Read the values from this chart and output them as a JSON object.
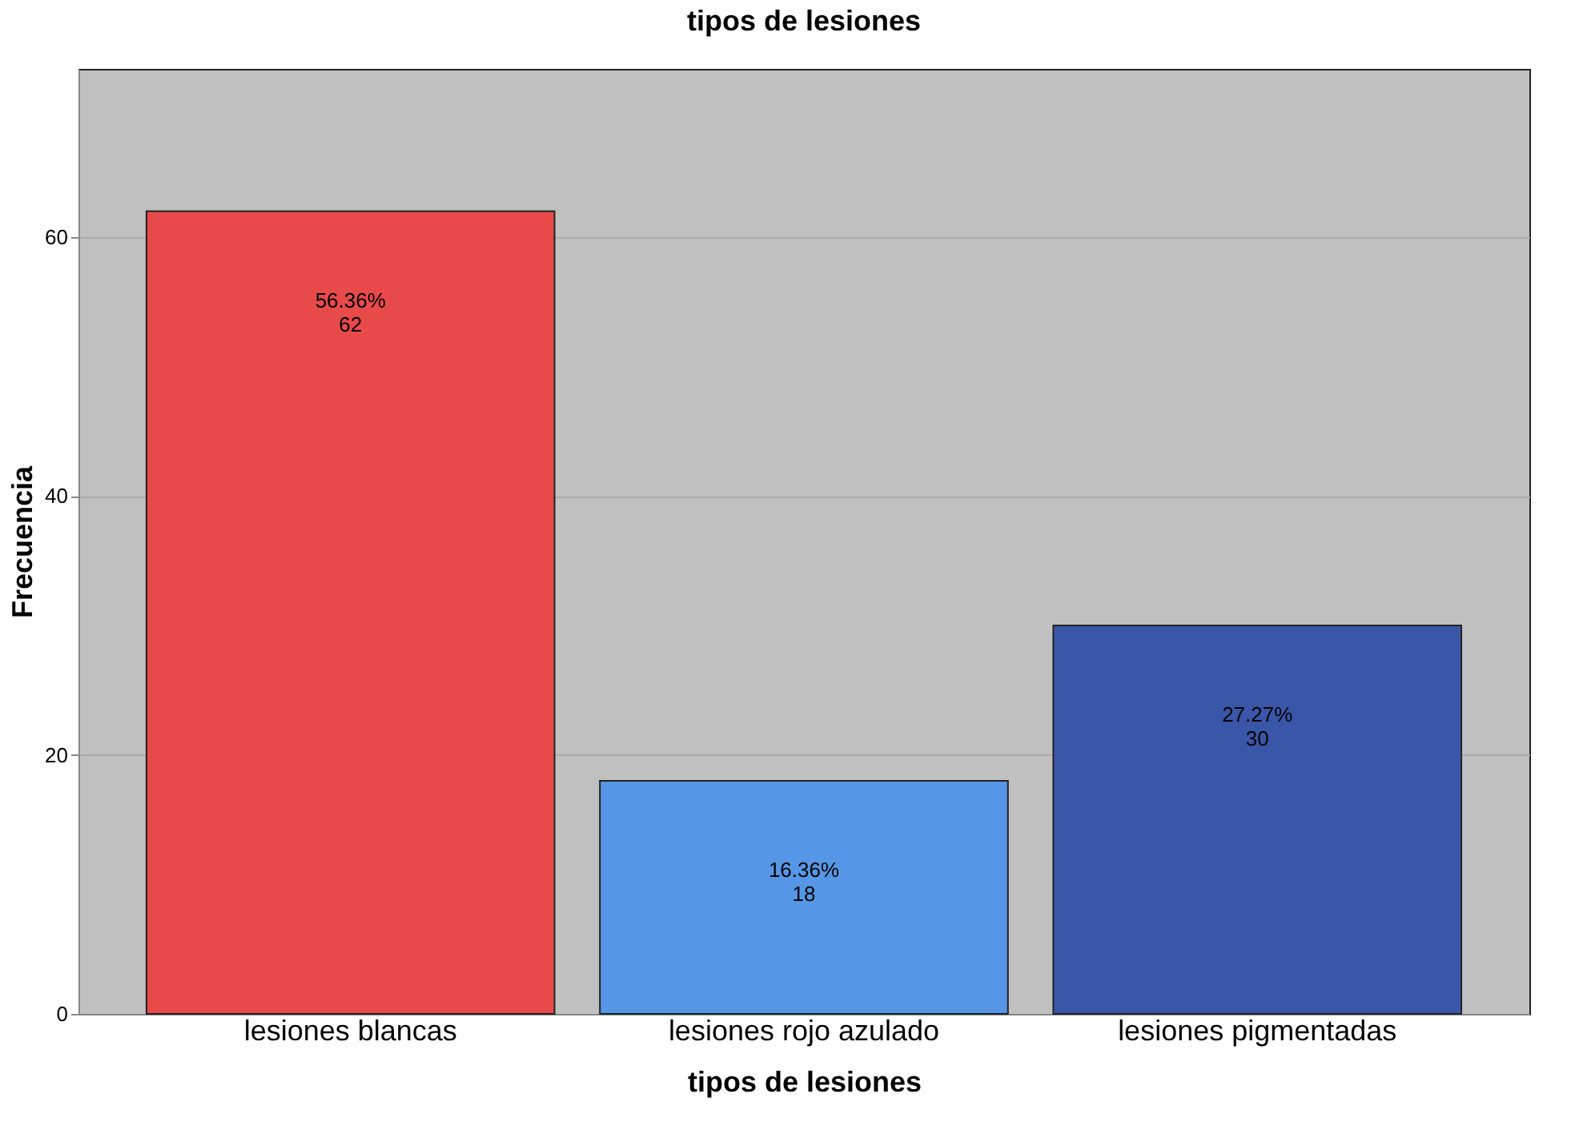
{
  "chart_data": {
    "type": "bar",
    "title": "tipos de lesiones",
    "xlabel": "tipos de lesiones",
    "ylabel": "Frecuencia",
    "categories": [
      "lesiones blancas",
      "lesiones rojo azulado",
      "lesiones pigmentadas"
    ],
    "values": [
      62,
      18,
      30
    ],
    "colors": [
      "#e84a4a",
      "#5597e6",
      "#3a56a8"
    ],
    "value_labels": [
      "56.36%\n62",
      "16.36%\n18",
      "27.27%\n30"
    ],
    "ylim": [
      0,
      73
    ],
    "yticks": [
      0,
      20,
      40,
      60
    ],
    "grid": "y"
  }
}
